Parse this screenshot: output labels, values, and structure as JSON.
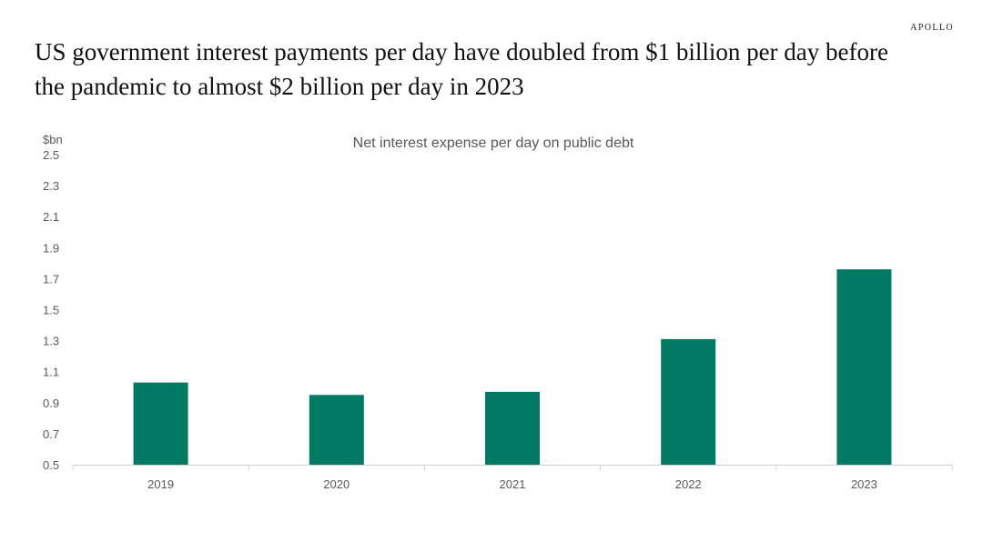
{
  "brand": "APOLLO",
  "headline": "US government interest payments per day have doubled from $1 billion per day before the pandemic to almost $2 billion per day in 2023",
  "colors": {
    "bar": "#007A63",
    "axis": "#d0d0d0",
    "text": "#595959"
  },
  "chart_data": {
    "type": "bar",
    "title": "Net interest expense per day on public debt",
    "ylabel": "$bn",
    "xlabel": "",
    "categories": [
      "2019",
      "2020",
      "2021",
      "2022",
      "2023"
    ],
    "values": [
      1.03,
      0.95,
      0.97,
      1.31,
      1.76
    ],
    "ylim": [
      0.5,
      2.5
    ],
    "yticks": [
      "0.5",
      "0.7",
      "0.9",
      "1.1",
      "1.3",
      "1.5",
      "1.7",
      "1.9",
      "2.1",
      "2.3",
      "2.5"
    ],
    "grid": false,
    "legend": "none"
  }
}
